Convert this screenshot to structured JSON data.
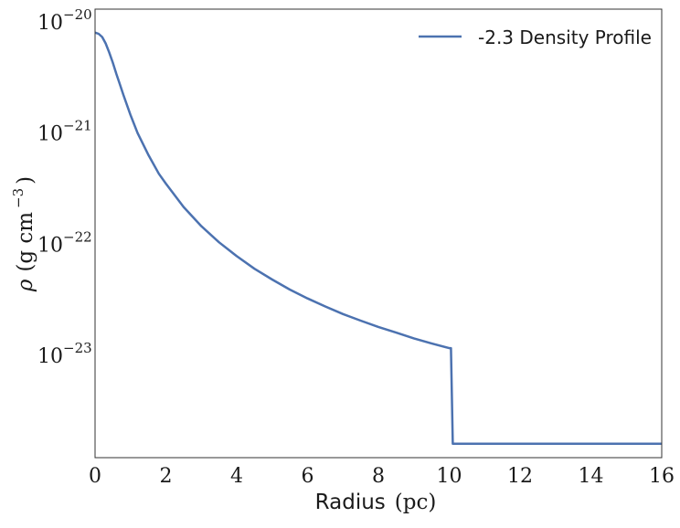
{
  "chart_data": {
    "type": "line",
    "title": "",
    "xlabel": "Radius (pc)",
    "xlabel_parts": {
      "word": "Radius",
      "unit": "(pc)"
    },
    "ylabel": "ρ (g cm⁻³)",
    "ylabel_parts": {
      "symbol": "ρ",
      "unit_open": "(g cm",
      "unit_exp": "−3",
      "unit_close": ")"
    },
    "xlim": [
      0,
      16
    ],
    "ylim": [
      1.2e-24,
      1.3e-20
    ],
    "yscale": "log",
    "grid": false,
    "legend_position": "top-right",
    "x_ticks": [
      {
        "value": 0,
        "label": "0"
      },
      {
        "value": 2,
        "label": "2"
      },
      {
        "value": 4,
        "label": "4"
      },
      {
        "value": 6,
        "label": "6"
      },
      {
        "value": 8,
        "label": "8"
      },
      {
        "value": 10,
        "label": "10"
      },
      {
        "value": 12,
        "label": "12"
      },
      {
        "value": 14,
        "label": "14"
      },
      {
        "value": 16,
        "label": "16"
      }
    ],
    "y_ticks": [
      {
        "value": 1e-20,
        "base": "10",
        "exp": "−20"
      },
      {
        "value": 1e-21,
        "base": "10",
        "exp": "−21"
      },
      {
        "value": 1e-22,
        "base": "10",
        "exp": "−22"
      },
      {
        "value": 1e-23,
        "base": "10",
        "exp": "−23"
      }
    ],
    "series": [
      {
        "name": "-2.3 Density Profile",
        "color": "#4c72b0",
        "x": [
          0,
          0.1,
          0.2,
          0.3,
          0.4,
          0.5,
          0.6,
          0.7,
          0.8,
          1.0,
          1.2,
          1.5,
          1.8,
          2.0,
          2.5,
          3.0,
          3.5,
          4.0,
          4.5,
          5.0,
          5.5,
          6.0,
          6.5,
          7.0,
          7.5,
          8.0,
          8.5,
          9.0,
          9.5,
          10.0,
          10.05,
          10.1,
          11,
          12,
          13,
          14,
          15,
          16
        ],
        "y": [
          8e-21,
          7.8e-21,
          7.3e-21,
          6.4e-21,
          5.3e-21,
          4.3e-21,
          3.4e-21,
          2.75e-21,
          2.2e-21,
          1.45e-21,
          1e-21,
          6.4e-22,
          4.3e-22,
          3.5e-22,
          2.16e-22,
          1.45e-22,
          1.04e-22,
          7.8e-23,
          6e-23,
          4.8e-23,
          3.9e-23,
          3.25e-23,
          2.75e-23,
          2.35e-23,
          2.05e-23,
          1.8e-23,
          1.6e-23,
          1.42e-23,
          1.28e-23,
          1.16e-23,
          1.16e-23,
          1.6e-24,
          1.6e-24,
          1.6e-24,
          1.6e-24,
          1.6e-24,
          1.6e-24,
          1.6e-24
        ]
      }
    ]
  }
}
